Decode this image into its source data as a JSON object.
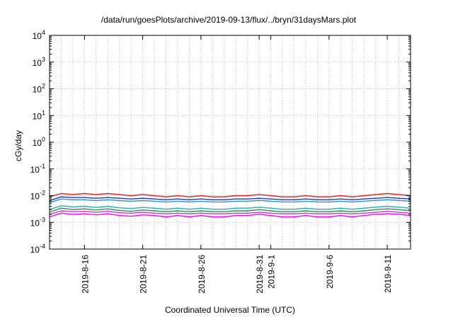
{
  "chart_data": {
    "type": "line",
    "title": "/data/run/goesPlots/archive/2019-09-13/flux/../bryn/31daysMars.plot",
    "xlabel": "Coordinated Universal Time (UTC)",
    "ylabel": "cGy/day",
    "yscale": "log",
    "ylim": [
      0.0001,
      10000
    ],
    "xlim": [
      "2019-08-13",
      "2019-09-13"
    ],
    "grid": true,
    "y_ticks": [
      {
        "value": 0.0001,
        "base": "10",
        "exp": "-4"
      },
      {
        "value": 0.001,
        "base": "10",
        "exp": "-3"
      },
      {
        "value": 0.01,
        "base": "10",
        "exp": "-2"
      },
      {
        "value": 0.1,
        "base": "10",
        "exp": "-1"
      },
      {
        "value": 1,
        "base": "10",
        "exp": "0"
      },
      {
        "value": 10,
        "base": "10",
        "exp": "1"
      },
      {
        "value": 100,
        "base": "10",
        "exp": "2"
      },
      {
        "value": 1000,
        "base": "10",
        "exp": "3"
      },
      {
        "value": 10000,
        "base": "10",
        "exp": "4"
      }
    ],
    "x_ticks": [
      {
        "value": "2019-08-16",
        "label": "2019-8-16"
      },
      {
        "value": "2019-08-21",
        "label": "2019-8-21"
      },
      {
        "value": "2019-08-26",
        "label": "2019-8-26"
      },
      {
        "value": "2019-08-31",
        "label": "2019-8-31"
      },
      {
        "value": "2019-09-01",
        "label": "2019-9-1"
      },
      {
        "value": "2019-09-06",
        "label": "2019-9-6"
      },
      {
        "value": "2019-09-11",
        "label": "2019-9-11"
      }
    ],
    "x": [
      "2019-08-13",
      "2019-08-14",
      "2019-08-15",
      "2019-08-16",
      "2019-08-17",
      "2019-08-18",
      "2019-08-19",
      "2019-08-20",
      "2019-08-21",
      "2019-08-22",
      "2019-08-23",
      "2019-08-24",
      "2019-08-25",
      "2019-08-26",
      "2019-08-27",
      "2019-08-28",
      "2019-08-29",
      "2019-08-30",
      "2019-08-31",
      "2019-09-01",
      "2019-09-02",
      "2019-09-03",
      "2019-09-04",
      "2019-09-05",
      "2019-09-06",
      "2019-09-07",
      "2019-09-08",
      "2019-09-09",
      "2019-09-10",
      "2019-09-11",
      "2019-09-12",
      "2019-09-13"
    ],
    "series": [
      {
        "color": "#e8201a",
        "values": [
          0.009,
          0.012,
          0.011,
          0.012,
          0.011,
          0.012,
          0.011,
          0.01,
          0.011,
          0.01,
          0.009,
          0.01,
          0.009,
          0.01,
          0.009,
          0.009,
          0.01,
          0.01,
          0.011,
          0.01,
          0.009,
          0.009,
          0.01,
          0.009,
          0.009,
          0.01,
          0.009,
          0.01,
          0.011,
          0.012,
          0.011,
          0.01
        ]
      },
      {
        "color": "#2233cc",
        "values": [
          0.0065,
          0.009,
          0.0085,
          0.0085,
          0.008,
          0.0085,
          0.008,
          0.0075,
          0.008,
          0.0075,
          0.007,
          0.0075,
          0.007,
          0.0075,
          0.007,
          0.007,
          0.0075,
          0.0075,
          0.008,
          0.0075,
          0.007,
          0.007,
          0.0075,
          0.007,
          0.007,
          0.0075,
          0.007,
          0.0075,
          0.008,
          0.0085,
          0.008,
          0.0075
        ]
      },
      {
        "color": "#1e90ff",
        "values": [
          0.0055,
          0.0075,
          0.007,
          0.007,
          0.0065,
          0.007,
          0.0065,
          0.0062,
          0.0065,
          0.0062,
          0.0058,
          0.0062,
          0.0058,
          0.0062,
          0.0058,
          0.0058,
          0.0062,
          0.0062,
          0.0066,
          0.0062,
          0.0058,
          0.0058,
          0.0062,
          0.0058,
          0.0058,
          0.0062,
          0.0058,
          0.0062,
          0.0066,
          0.007,
          0.0066,
          0.0062
        ]
      },
      {
        "color": "#20b2aa",
        "values": [
          0.003,
          0.0042,
          0.0038,
          0.004,
          0.0036,
          0.004,
          0.0035,
          0.0033,
          0.0036,
          0.0034,
          0.0031,
          0.0034,
          0.0031,
          0.0034,
          0.0031,
          0.0031,
          0.0034,
          0.0034,
          0.0037,
          0.0034,
          0.0031,
          0.0031,
          0.0034,
          0.0031,
          0.0031,
          0.0034,
          0.0031,
          0.0034,
          0.0037,
          0.004,
          0.0037,
          0.0034
        ]
      },
      {
        "color": "#2e8b57",
        "values": [
          0.0024,
          0.0034,
          0.003,
          0.0032,
          0.0029,
          0.0032,
          0.0028,
          0.0026,
          0.0029,
          0.0027,
          0.0025,
          0.0027,
          0.0025,
          0.0027,
          0.0025,
          0.0025,
          0.0027,
          0.0027,
          0.003,
          0.0027,
          0.0025,
          0.0025,
          0.0027,
          0.0025,
          0.0025,
          0.0027,
          0.0025,
          0.0027,
          0.003,
          0.0032,
          0.003,
          0.0027
        ]
      },
      {
        "color": "#cc33cc",
        "values": [
          0.002,
          0.0027,
          0.0025,
          0.0026,
          0.0024,
          0.0026,
          0.0023,
          0.0022,
          0.0024,
          0.0022,
          0.0021,
          0.0022,
          0.0021,
          0.0022,
          0.0021,
          0.0021,
          0.0022,
          0.0022,
          0.0024,
          0.0022,
          0.0021,
          0.0021,
          0.0022,
          0.0021,
          0.0021,
          0.0022,
          0.0021,
          0.0022,
          0.0024,
          0.0026,
          0.0024,
          0.0022
        ]
      },
      {
        "color": "#ff00ff",
        "values": [
          0.0016,
          0.0022,
          0.002,
          0.0021,
          0.0019,
          0.0021,
          0.0018,
          0.0017,
          0.0019,
          0.0018,
          0.0016,
          0.0018,
          0.0016,
          0.0018,
          0.0016,
          0.0016,
          0.0018,
          0.0018,
          0.002,
          0.0018,
          0.0016,
          0.0016,
          0.0018,
          0.0016,
          0.0016,
          0.0018,
          0.0016,
          0.0018,
          0.002,
          0.0021,
          0.002,
          0.0018
        ]
      }
    ]
  }
}
